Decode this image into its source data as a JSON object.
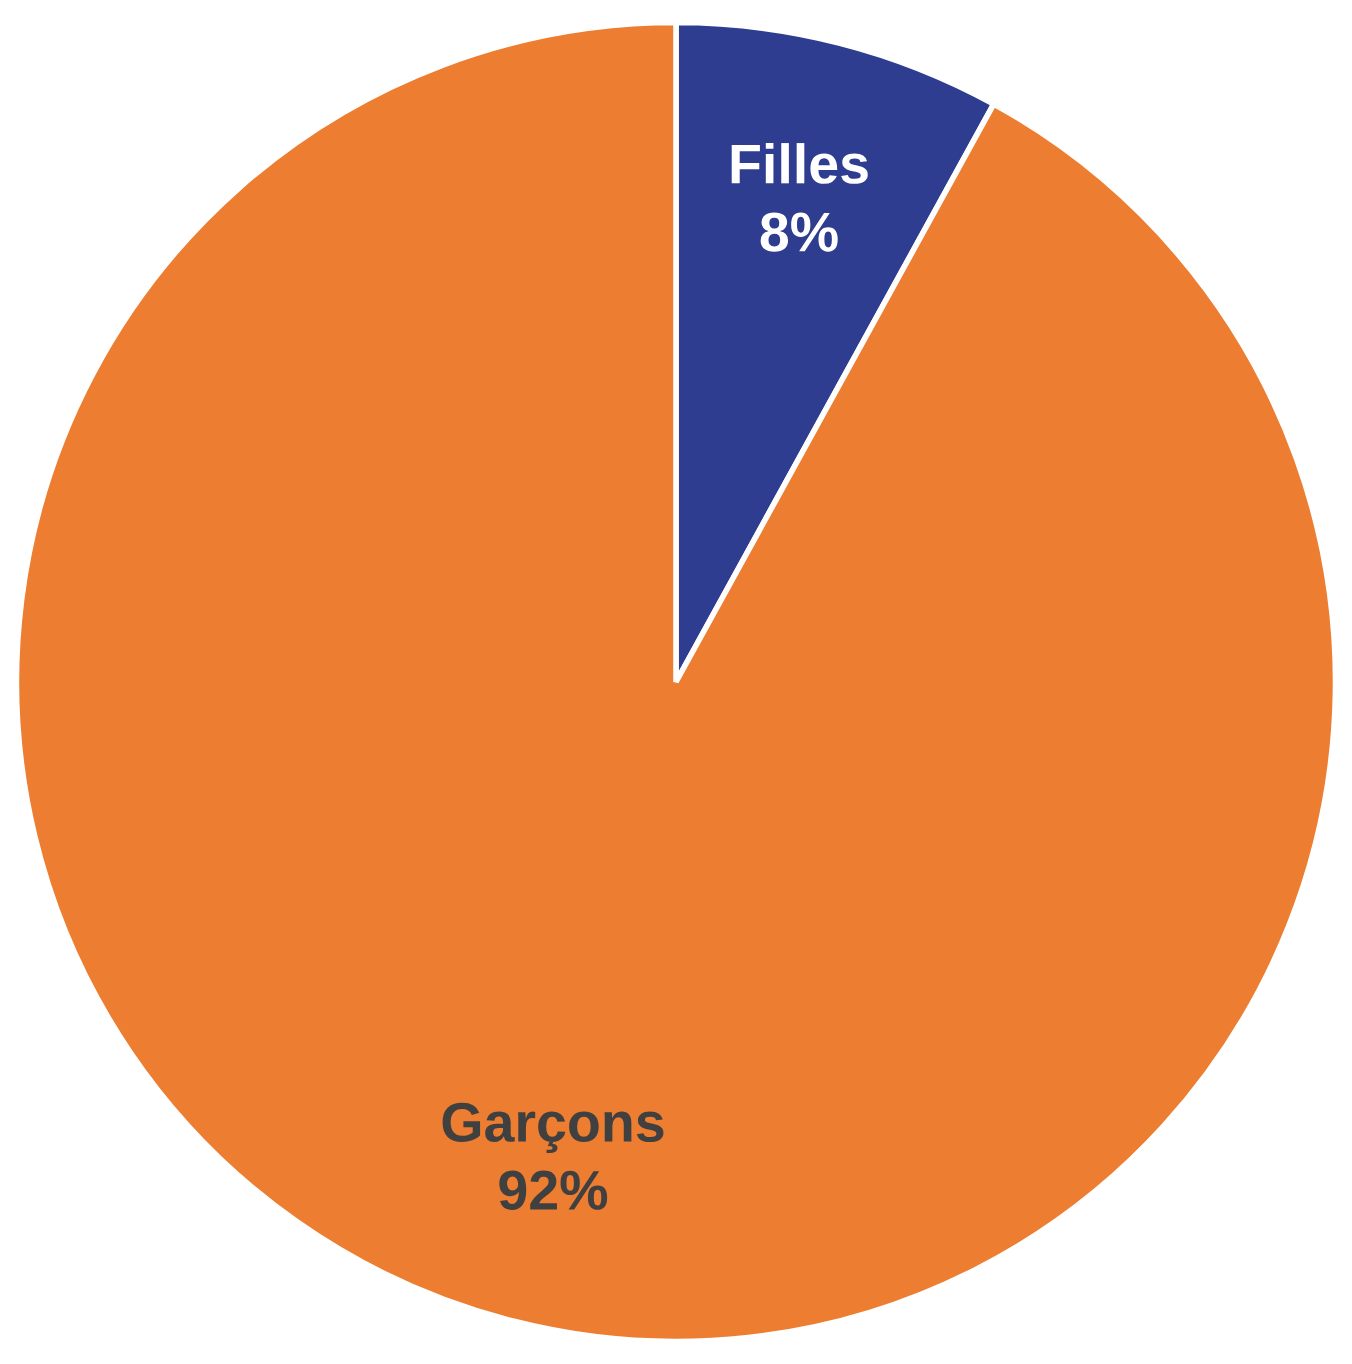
{
  "chart_data": {
    "type": "pie",
    "categories": [
      "Filles",
      "Garçons"
    ],
    "values": [
      8,
      92
    ],
    "value_labels": [
      "8%",
      "92%"
    ],
    "colors": [
      "#2e3d8f",
      "#ed7d31"
    ]
  }
}
